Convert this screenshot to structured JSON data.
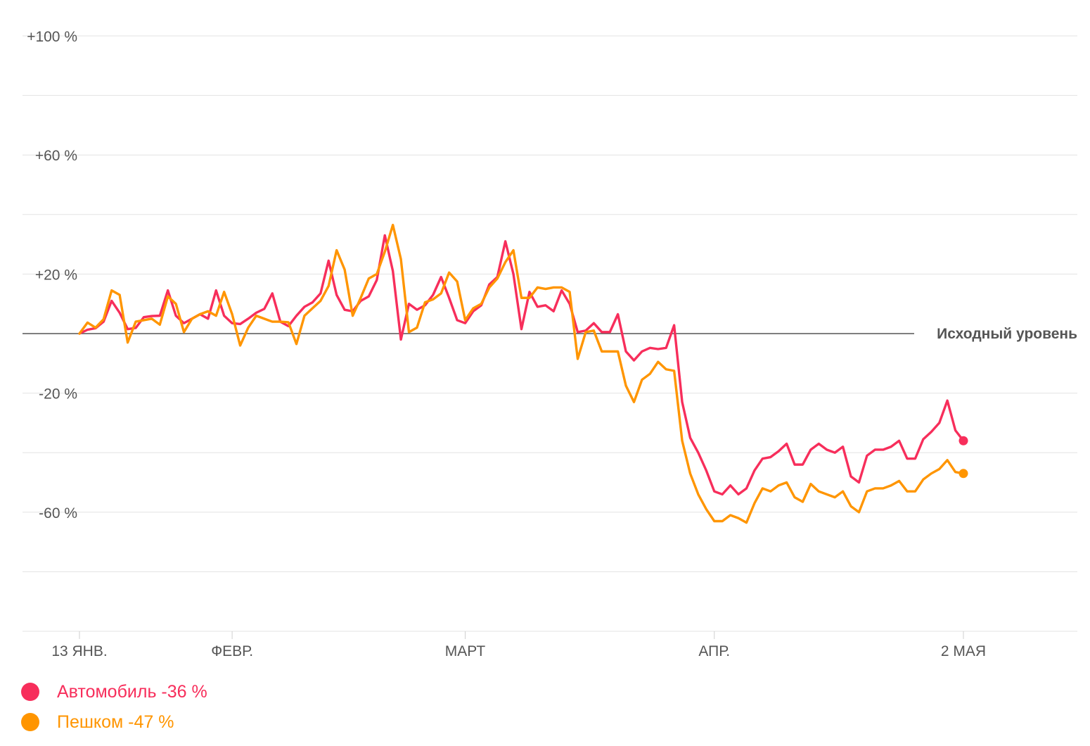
{
  "chart_data": {
    "type": "line",
    "ylim": [
      -100,
      100
    ],
    "yticks": [
      {
        "value": 100,
        "label": "+100 %"
      },
      {
        "value": 60,
        "label": "+60 %"
      },
      {
        "value": 20,
        "label": "+20 %"
      },
      {
        "value": -20,
        "label": "-20 %"
      },
      {
        "value": -60,
        "label": "-60 %"
      }
    ],
    "ygrid": [
      100,
      80,
      60,
      40,
      20,
      0,
      -20,
      -40,
      -60,
      -80,
      -100
    ],
    "xlim": [
      "2020-01-13",
      "2020-05-02"
    ],
    "xticks": [
      {
        "date": "2020-01-13",
        "label": "13 ЯНВ."
      },
      {
        "date": "2020-02-01",
        "label": "ФЕВР."
      },
      {
        "date": "2020-03-01",
        "label": "МАРТ"
      },
      {
        "date": "2020-04-01",
        "label": "АПР."
      },
      {
        "date": "2020-05-02",
        "label": "2 МАЯ"
      }
    ],
    "baseline": {
      "value": 0,
      "label": "Исходный уровень"
    },
    "series": [
      {
        "name": "Автомобиль",
        "legend_label": "Автомобиль -36 %",
        "color": "#f72e5b",
        "values": [
          0,
          1.3,
          1.8,
          4.0,
          11.0,
          7.0,
          1.5,
          1.9,
          5.5,
          5.9,
          6.0,
          14.5,
          6.0,
          3.5,
          5.0,
          6.5,
          5.0,
          14.5,
          6.0,
          3.5,
          3.2,
          5.0,
          7.0,
          8.3,
          13.5,
          4.0,
          2.5,
          6.0,
          9.0,
          10.5,
          13.5,
          24.5,
          13.0,
          8.0,
          7.5,
          11.0,
          12.5,
          18.0,
          33.0,
          21.0,
          -2.0,
          10.0,
          8.0,
          9.5,
          13.0,
          19.0,
          12.0,
          4.5,
          3.5,
          7.5,
          9.5,
          16.5,
          19.0,
          31.0,
          20.0,
          1.5,
          14.0,
          9.0,
          9.5,
          7.5,
          14.5,
          10.0,
          0.5,
          1.0,
          3.5,
          0.5,
          0.5,
          6.5,
          -6.0,
          -9.0,
          -6.0,
          -4.8,
          -5.2,
          -4.8,
          2.8,
          -23.0,
          -35.0,
          -40.0,
          -46.0,
          -53.0,
          -54.0,
          -51.0,
          -54.0,
          -52.0,
          -46.0,
          -42.0,
          -41.5,
          -39.5,
          -37.0,
          -44.0,
          -44.0,
          -39.0,
          -37.0,
          -39.0,
          -40.0,
          -38.0,
          -48.0,
          -50.0,
          -41.0,
          -39.0,
          -39.0,
          -38.0,
          -36.0,
          -42.0,
          -42.0,
          -35.5,
          -33.0,
          -30.0,
          -22.5,
          -32.5,
          -36.0
        ]
      },
      {
        "name": "Пешком",
        "legend_label": "Пешком -47 %",
        "color": "#ff9500",
        "values": [
          0,
          3.7,
          2.0,
          4.8,
          14.5,
          13.0,
          -3.0,
          4.0,
          4.5,
          5.0,
          3.0,
          12.5,
          10.0,
          0.5,
          5.0,
          6.5,
          7.5,
          6.0,
          14.0,
          6.5,
          -4.0,
          2.0,
          6.0,
          5.0,
          4.0,
          4.0,
          3.8,
          -3.5,
          6.0,
          8.5,
          11.0,
          16.0,
          28.0,
          21.5,
          6.0,
          12.0,
          18.5,
          20.0,
          27.5,
          36.5,
          25.0,
          0.5,
          2.0,
          10.5,
          11.5,
          13.5,
          20.5,
          17.5,
          4.5,
          8.5,
          10.0,
          15.5,
          18.5,
          24.0,
          28.0,
          12.0,
          12.0,
          15.5,
          15.0,
          15.5,
          15.5,
          14.0,
          -8.5,
          0.5,
          1.0,
          -6.0,
          -6.0,
          -6.0,
          -17.5,
          -23.0,
          -15.5,
          -13.5,
          -9.5,
          -12.0,
          -12.5,
          -36.0,
          -47.0,
          -54.0,
          -59.0,
          -63.0,
          -63.0,
          -61.0,
          -62.0,
          -63.5,
          -57.0,
          -52.0,
          -53.0,
          -51.0,
          -50.0,
          -55.0,
          -56.5,
          -50.5,
          -53.0,
          -54.0,
          -55.0,
          -53.0,
          -58.0,
          -60.0,
          -53.0,
          -52.0,
          -52.0,
          -51.0,
          -49.5,
          -53.0,
          -53.0,
          -49.0,
          -47.0,
          -45.5,
          -42.5,
          -46.5,
          -47.0
        ]
      }
    ]
  }
}
